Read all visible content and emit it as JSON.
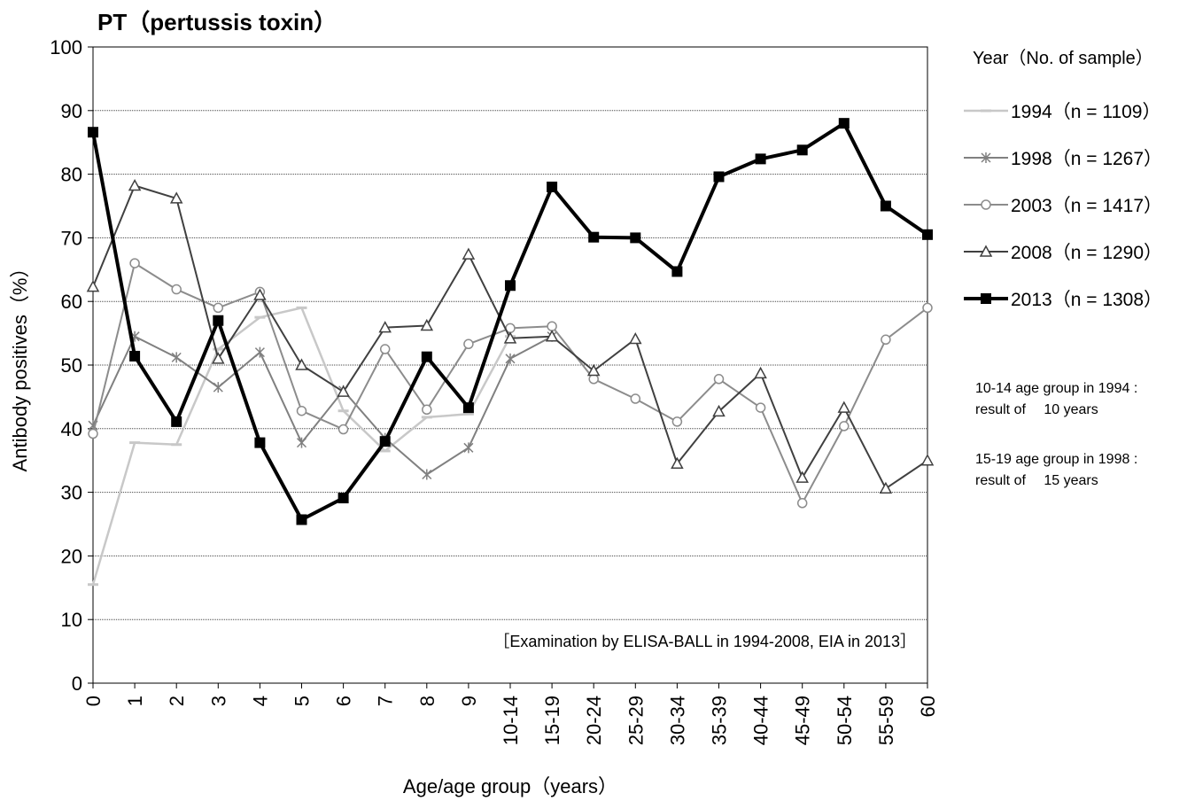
{
  "chart_data": {
    "type": "line",
    "title": "PT（pertussis toxin）",
    "xlabel": "Age/age group（years）",
    "ylabel": "Antibody positives（%）",
    "ylim": [
      0,
      100
    ],
    "yticks": [
      "0",
      "10",
      "20",
      "30",
      "40",
      "50",
      "60",
      "70",
      "80",
      "90",
      "100"
    ],
    "grid": "horizontal dotted",
    "categories": [
      "0",
      "1",
      "2",
      "3",
      "4",
      "5",
      "6",
      "7",
      "8",
      "9",
      "10-14",
      "15-19",
      "20-24",
      "25-29",
      "30-34",
      "35-39",
      "40-44",
      "45-49",
      "50-54",
      "55-59",
      "60"
    ],
    "annotation": "［Examination by ELISA-BALL in 1994-2008, EIA in 2013］",
    "legend": {
      "title": "Year（No. of sample）",
      "position": "right",
      "notes": [
        [
          "10-14 age group in 1994 :",
          "result of   10 years"
        ],
        [
          "15-19 age group in 1998 :",
          "result of   15 years"
        ]
      ]
    },
    "series": [
      {
        "name": "1994（n = 1109）",
        "color": "#c8c8c8",
        "marker": "dash",
        "width": 2.5,
        "values": [
          15.5,
          37.8,
          37.5,
          52.5,
          57.5,
          59.0,
          42.8,
          36.5,
          41.8,
          42.3,
          54.5,
          null,
          null,
          null,
          null,
          null,
          null,
          null,
          null,
          null,
          null
        ]
      },
      {
        "name": "1998（n = 1267）",
        "color": "#808080",
        "marker": "star",
        "width": 2,
        "values": [
          40.5,
          54.5,
          51.2,
          46.5,
          52.0,
          37.8,
          46.0,
          38.5,
          32.8,
          37.0,
          51.0,
          54.5,
          null,
          null,
          null,
          null,
          null,
          null,
          null,
          null,
          null
        ]
      },
      {
        "name": "2003（n = 1417）",
        "color": "#8c8c8c",
        "marker": "circle",
        "width": 2,
        "values": [
          39.2,
          66.0,
          61.9,
          59.0,
          61.5,
          42.8,
          39.9,
          52.5,
          43.0,
          53.3,
          55.8,
          56.1,
          47.8,
          44.7,
          41.1,
          47.8,
          43.3,
          28.3,
          40.4,
          54.0,
          59.0
        ]
      },
      {
        "name": "2008（n = 1290）",
        "color": "#404040",
        "marker": "triangle",
        "width": 2,
        "values": [
          62.3,
          78.2,
          76.2,
          51.0,
          61.0,
          50.0,
          45.8,
          55.9,
          56.2,
          67.4,
          54.2,
          54.5,
          49.1,
          54.1,
          34.5,
          42.7,
          48.7,
          32.3,
          43.3,
          30.6,
          35.0
        ]
      },
      {
        "name": "2013（n = 1308）",
        "color": "#000000",
        "marker": "square",
        "width": 4,
        "values": [
          86.6,
          51.4,
          41.1,
          57.0,
          37.8,
          25.7,
          29.1,
          38.0,
          51.3,
          43.3,
          62.5,
          78.0,
          70.1,
          70.0,
          64.7,
          79.6,
          82.4,
          83.8,
          88.0,
          75.0,
          70.5
        ]
      }
    ]
  }
}
